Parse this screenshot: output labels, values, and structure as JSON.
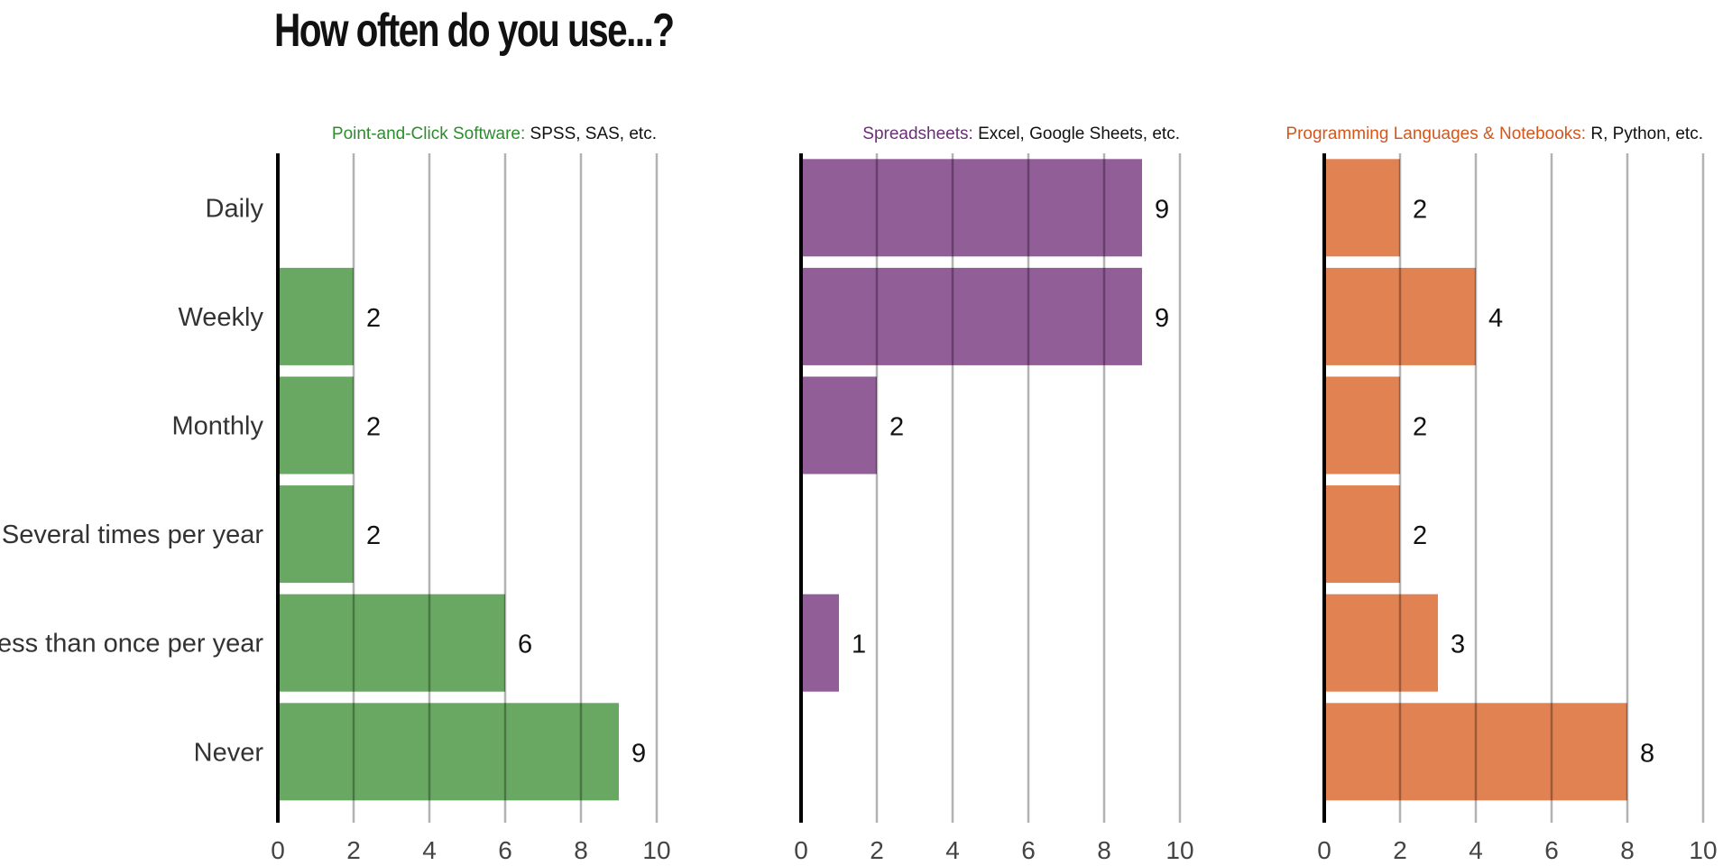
{
  "title": "How often do you use...?",
  "chart_data": {
    "type": "bar",
    "orientation": "horizontal",
    "categories": [
      "Daily",
      "Weekly",
      "Monthly",
      "Several times per year",
      "Less than once per year",
      "Never"
    ],
    "xlim": [
      0,
      10
    ],
    "xticks": [
      0,
      2,
      4,
      6,
      8,
      10
    ],
    "grid": true,
    "panels": [
      {
        "name": "Point-and-Click Software:",
        "description": " SPSS, SAS, etc.",
        "color": "#69a862",
        "name_color": "#2e8b2e",
        "values": [
          0,
          2,
          2,
          2,
          6,
          9
        ]
      },
      {
        "name": "Spreadsheets:",
        "description": " Excel, Google Sheets, etc.",
        "color": "#915e98",
        "name_color": "#6a2f78",
        "values": [
          9,
          9,
          2,
          0,
          1,
          0
        ]
      },
      {
        "name": "Programming Languages & Notebooks:",
        "description": " R, Python, etc.",
        "color": "#e18252",
        "name_color": "#d4561b",
        "values": [
          2,
          4,
          2,
          2,
          3,
          8
        ]
      }
    ]
  }
}
